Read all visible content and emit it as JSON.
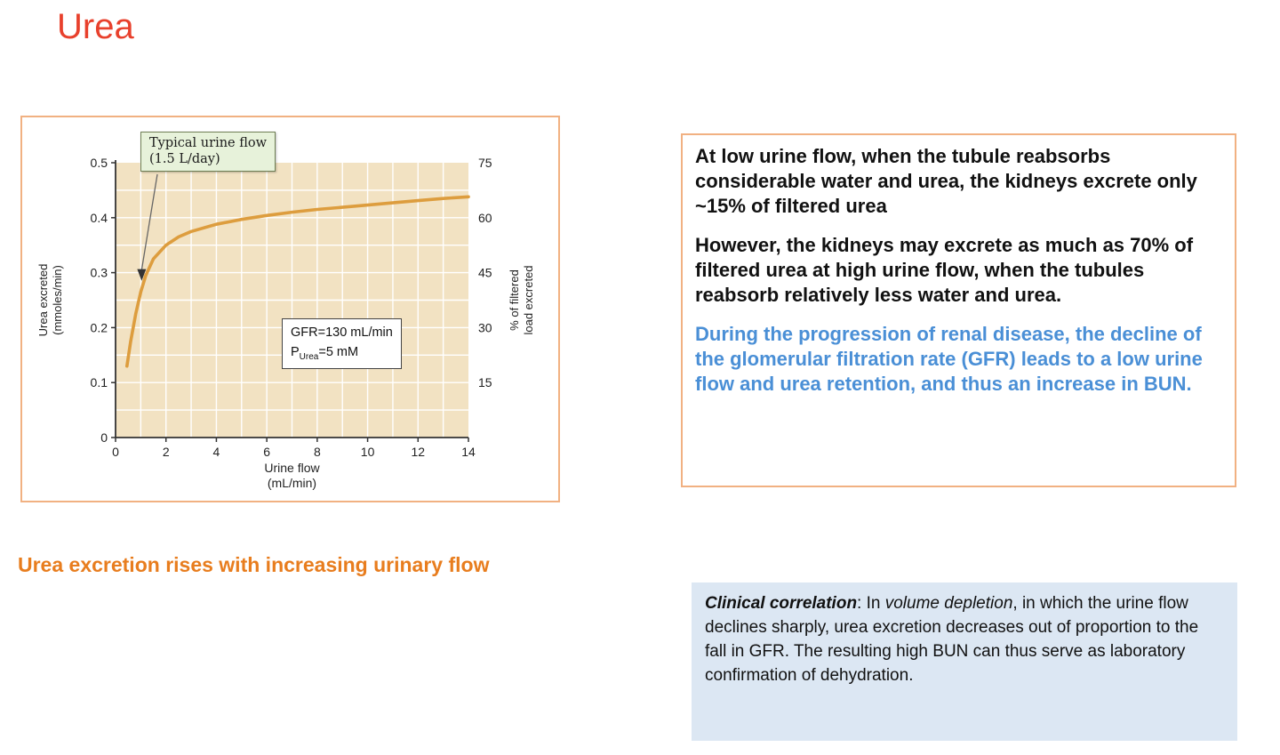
{
  "title": "Urea",
  "caption": "Urea excretion rises with increasing urinary flow",
  "info_box": {
    "paragraphs": [
      {
        "text": "At low urine flow, when the tubule reabsorbs considerable water and urea, the kidneys excrete only ~15% of filtered urea",
        "color": "black"
      },
      {
        "text": "However, the kidneys may excrete as much as 70% of filtered urea at high urine flow, when the tubules reabsorb relatively less water and urea.",
        "color": "black"
      },
      {
        "text": "During the progression of renal disease, the decline of the glomerular filtration rate (GFR) leads to a low urine flow and urea retention, and thus an increase in BUN.",
        "color": "blue"
      }
    ]
  },
  "clinical_box": {
    "lead_bold_italic": "Clinical correlation",
    "text_after_lead": ": In ",
    "italic_term": "volume depletion",
    "text_rest": ", in which the urine flow declines sharply, urea excretion decreases out of proportion to the fall in GFR. The resulting high BUN can thus serve as laboratory confirmation of dehydration."
  },
  "chart_data": {
    "type": "line",
    "title": "",
    "xlabel_line1": "Urine flow",
    "xlabel_line2": "(mL/min)",
    "ylabel_left_line1": "Urea excreted",
    "ylabel_left_line2": "(mmoles/min)",
    "ylabel_right_line1": "% of filtered",
    "ylabel_right_line2": "load excreted",
    "xlim": [
      0,
      14
    ],
    "ylim_left": [
      0,
      0.5
    ],
    "ylim_right": [
      0,
      75
    ],
    "x_ticks": [
      0,
      2,
      4,
      6,
      8,
      10,
      12,
      14
    ],
    "y_ticks_left": [
      0,
      0.1,
      0.2,
      0.3,
      0.4,
      0.5
    ],
    "y_ticks_right": [
      15,
      30,
      45,
      60,
      75
    ],
    "grid": true,
    "legend": "none",
    "series": [
      {
        "name": "Urea excreted vs urine flow",
        "points": [
          [
            0.45,
            0.13
          ],
          [
            0.6,
            0.175
          ],
          [
            0.8,
            0.225
          ],
          [
            1.0,
            0.265
          ],
          [
            1.2,
            0.295
          ],
          [
            1.5,
            0.325
          ],
          [
            2.0,
            0.35
          ],
          [
            2.5,
            0.365
          ],
          [
            3,
            0.375
          ],
          [
            4,
            0.388
          ],
          [
            5,
            0.397
          ],
          [
            6,
            0.404
          ],
          [
            7,
            0.41
          ],
          [
            8,
            0.415
          ],
          [
            9,
            0.419
          ],
          [
            10,
            0.423
          ],
          [
            11,
            0.427
          ],
          [
            12,
            0.431
          ],
          [
            13,
            0.435
          ],
          [
            14,
            0.438
          ]
        ]
      }
    ],
    "annotations": {
      "callout_line1": "Typical urine flow",
      "callout_line2": "(1.5 L/day)",
      "callout_points_to_x": 1.0,
      "gfr_line1": "GFR=130 mL/min",
      "gfr_line2_prefix": "P",
      "gfr_line2_sub": "Urea",
      "gfr_line2_suffix": "=5 mM"
    },
    "colors": {
      "curve": "#dd9d3e",
      "plot_bg": "#f2e2c2",
      "grid": "#ffffff"
    }
  },
  "colors": {
    "title_red": "#e8402c",
    "panel_border_orange": "#f1b182",
    "caption_orange": "#e87d1e",
    "paragraph_blue": "#4a8fd6",
    "clinical_bg_blue": "#dce7f3"
  }
}
